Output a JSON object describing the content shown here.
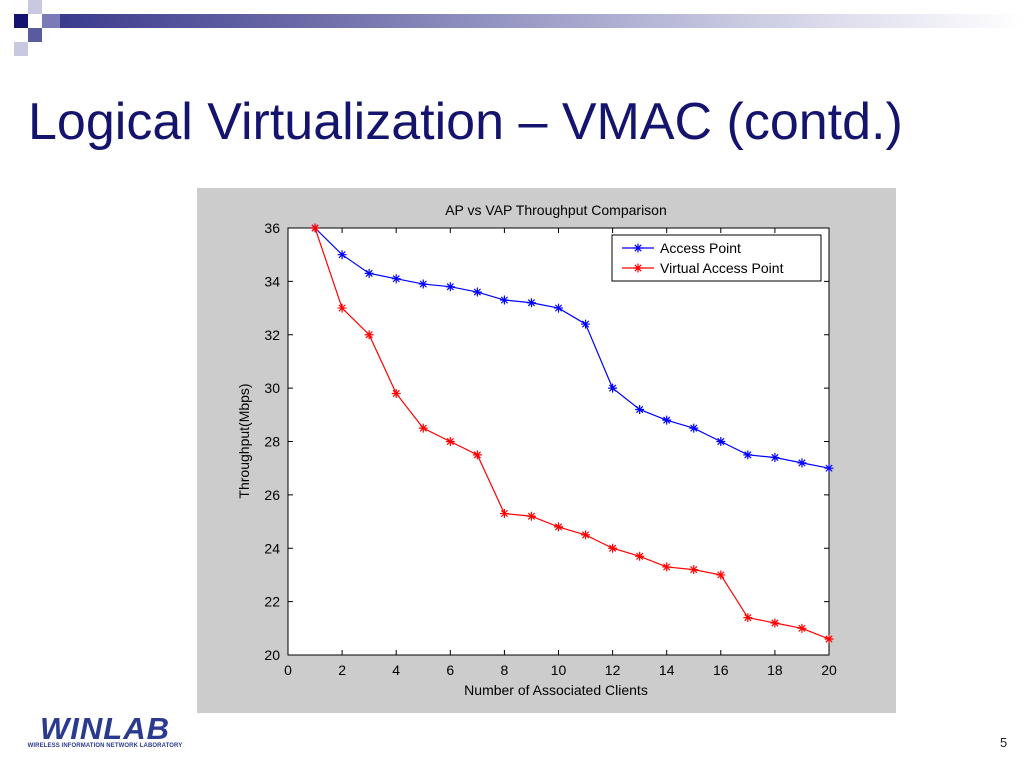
{
  "slide": {
    "title": "Logical Virtualization – VMAC (contd.)",
    "page_number": "5"
  },
  "logo": {
    "text": "WINLAB",
    "subtitle": "WIRELESS INFORMATION NETWORK LABORATORY"
  },
  "colors": {
    "title": "#14146e",
    "access_point": "#0000ff",
    "virtual_access_point": "#ff0000",
    "panel_bg": "#cccccc"
  },
  "chart_data": {
    "type": "line",
    "title": "AP vs VAP Throughput Comparison",
    "xlabel": "Number of Associated Clients",
    "ylabel": "Throughput(Mbps)",
    "xlim": [
      0,
      20
    ],
    "ylim": [
      20,
      36
    ],
    "xticks": [
      0,
      2,
      4,
      6,
      8,
      10,
      12,
      14,
      16,
      18,
      20
    ],
    "yticks": [
      20,
      22,
      24,
      26,
      28,
      30,
      32,
      34,
      36
    ],
    "grid": false,
    "legend": "top-right",
    "x": [
      1,
      2,
      3,
      4,
      5,
      6,
      7,
      8,
      9,
      10,
      11,
      12,
      13,
      14,
      15,
      16,
      17,
      18,
      19,
      20
    ],
    "series": [
      {
        "name": "Access Point",
        "color": "#0000ff",
        "marker": "star",
        "values": [
          36,
          35,
          34.3,
          34.1,
          33.9,
          33.8,
          33.6,
          33.3,
          33.2,
          33.0,
          32.4,
          30.0,
          29.2,
          28.8,
          28.5,
          28.0,
          27.5,
          27.4,
          27.2,
          27.0
        ]
      },
      {
        "name": "Virtual Access Point",
        "color": "#ff0000",
        "marker": "star",
        "values": [
          36,
          33.0,
          32.0,
          29.8,
          28.5,
          28.0,
          27.5,
          25.3,
          25.2,
          24.8,
          24.5,
          24.0,
          23.7,
          23.3,
          23.2,
          23.0,
          21.4,
          21.2,
          21.0,
          20.6
        ]
      }
    ]
  }
}
